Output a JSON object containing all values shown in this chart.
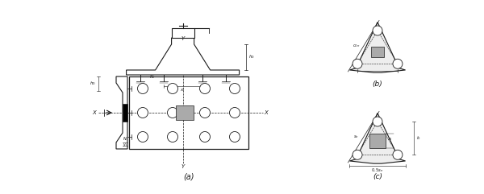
{
  "bg_color": "#ffffff",
  "line_color": "#1a1a1a",
  "gray_fill": "#aaaaaa",
  "title_a": "(a)",
  "title_b": "(b)",
  "title_c": "(c)"
}
